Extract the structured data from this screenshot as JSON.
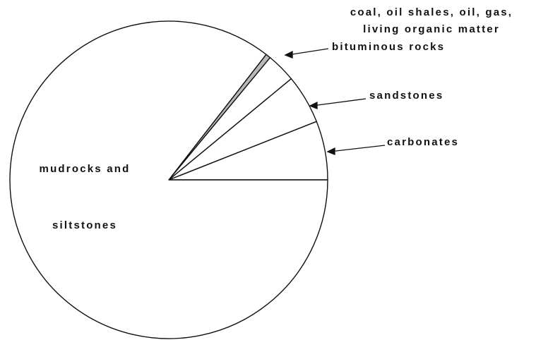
{
  "chart_data": {
    "type": "pie",
    "categories": [
      "carbonates",
      "sandstones",
      "bituminous rocks",
      "coal, oil shales, oil, gas, living organic matter",
      "mudrocks and siltstones"
    ],
    "values": [
      6,
      5,
      3,
      0.5,
      85.5
    ],
    "colors": [
      "#ffffff",
      "#ffffff",
      "#ffffff",
      "#b8b8b8",
      "#ffffff"
    ]
  }
}
